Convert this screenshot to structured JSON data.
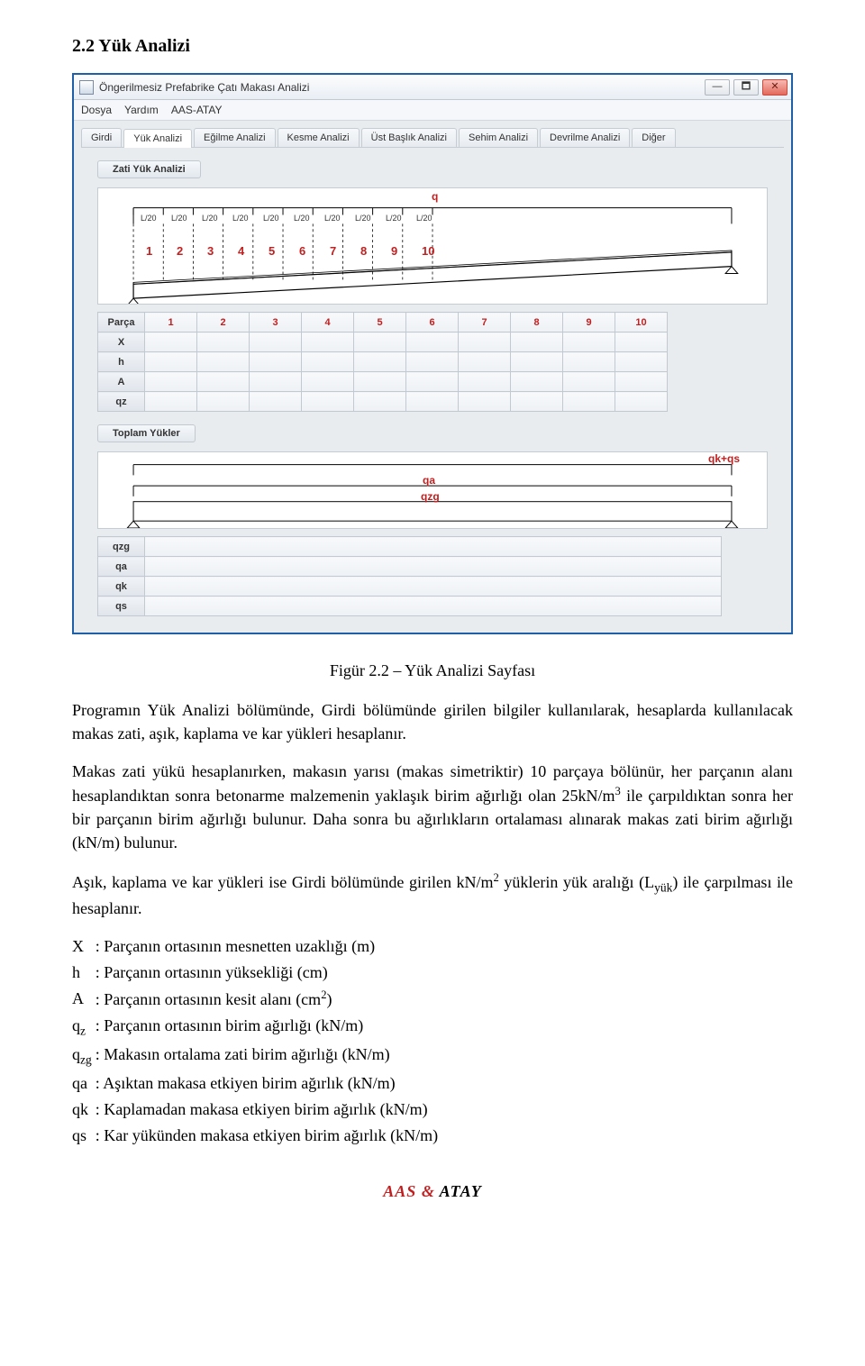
{
  "doc": {
    "section_title": "2.2 Yük Analizi",
    "caption": "Figür 2.2 – Yük Analizi Sayfası",
    "para1": "Programın Yük Analizi bölümünde, Girdi bölümünde girilen bilgiler kullanılarak, hesaplarda kullanılacak makas zati, aşık, kaplama ve kar yükleri hesaplanır.",
    "para2_a": "Makas zati yükü hesaplanırken, makasın yarısı (makas simetriktir) 10 parçaya bölünür, her parçanın alanı hesaplandıktan sonra betonarme malzemenin yaklaşık birim ağırlığı olan 25kN/m",
    "para2_b": " ile çarpıldıktan sonra her bir parçanın birim ağırlığı bulunur. Daha sonra bu ağırlıkların ortalaması alınarak makas zati birim ağırlığı (kN/m) bulunur.",
    "para3_a": "Aşık, kaplama ve kar yükleri ise Girdi bölümünde girilen kN/m",
    "para3_b": " yüklerin yük aralığı (L",
    "para3_c": ") ile çarpılması ile hesaplanır.",
    "defs": [
      {
        "sym": "X",
        "desc": ": Parçanın ortasının mesnetten uzaklığı (m)"
      },
      {
        "sym": "h",
        "desc": ": Parçanın ortasının yüksekliği (cm)"
      },
      {
        "sym": "A",
        "desc_a": ": Parçanın ortasının kesit alanı (cm",
        "desc_b": ")"
      },
      {
        "sym": "q",
        "sub": "z",
        "desc": ": Parçanın ortasının birim ağırlığı (kN/m)"
      },
      {
        "sym": "q",
        "sub": "zg",
        "desc": ": Makasın ortalama zati birim ağırlığı (kN/m)"
      },
      {
        "sym": "qa",
        "desc": ": Aşıktan makasa etkiyen birim ağırlık (kN/m)"
      },
      {
        "sym": "qk",
        "desc": ": Kaplamadan makasa etkiyen birim ağırlık (kN/m)"
      },
      {
        "sym": "qs",
        "desc": ": Kar yükünden makasa etkiyen birim ağırlık (kN/m)"
      }
    ],
    "footer": {
      "a": "AAS",
      "amp": "&",
      "b": "ATAY"
    }
  },
  "win": {
    "title": "Öngerilmesiz Prefabrike Çatı Makası Analizi",
    "menu": [
      "Dosya",
      "Yardım",
      "AAS-ATAY"
    ],
    "tabs": [
      "Girdi",
      "Yük Analizi",
      "Eğilme Analizi",
      "Kesme Analizi",
      "Üst Başlık Analizi",
      "Sehim Analizi",
      "Devrilme Analizi",
      "Diğer"
    ],
    "active_tab": 1,
    "section1": "Zati Yük Analizi",
    "section2": "Toplam Yükler",
    "diag1": {
      "q_label": "q",
      "seg_label": "L/20",
      "nums": [
        "1",
        "2",
        "3",
        "4",
        "5",
        "6",
        "7",
        "8",
        "9",
        "10"
      ],
      "label_color": "#c02020"
    },
    "diag2": {
      "top": "qk+qs",
      "mid": "qa",
      "bot": "qzg",
      "label_color": "#c02020"
    },
    "table1": {
      "row_headers": [
        "Parça",
        "X",
        "h",
        "A",
        "qz"
      ],
      "cols": [
        "1",
        "2",
        "3",
        "4",
        "5",
        "6",
        "7",
        "8",
        "9",
        "10"
      ]
    },
    "table2": {
      "rows": [
        "qzg",
        "qa",
        "qk",
        "qs"
      ]
    }
  }
}
